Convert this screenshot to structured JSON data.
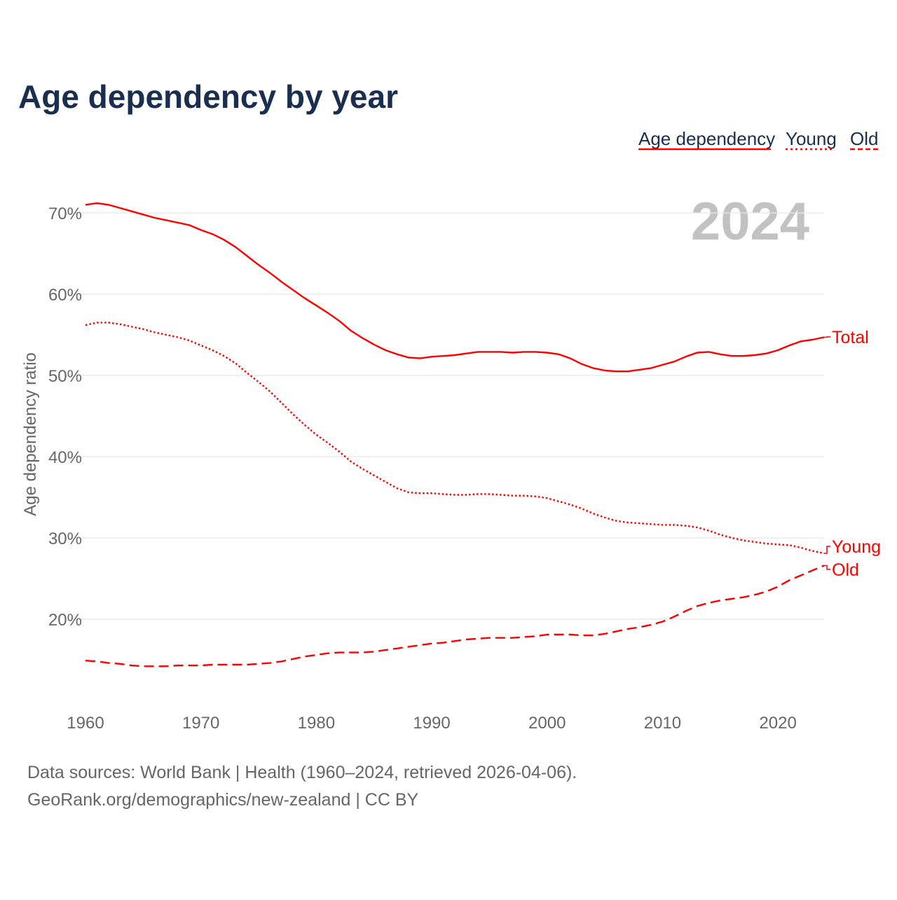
{
  "chart_data": {
    "type": "line",
    "title": "Age dependency by year",
    "xlabel": "",
    "ylabel": "Age dependency ratio",
    "watermark_year": "2024",
    "xlim": [
      1960,
      2024
    ],
    "ylim": [
      10,
      72
    ],
    "x_ticks": [
      1960,
      1970,
      1980,
      1990,
      2000,
      2010,
      2020
    ],
    "y_ticks": [
      20,
      30,
      40,
      50,
      60,
      70
    ],
    "y_tick_labels": [
      "20%",
      "30%",
      "40%",
      "50%",
      "60%",
      "70%"
    ],
    "grid": true,
    "legend_position": "top-right",
    "legend": [
      {
        "label": "Age dependency",
        "style": "solid"
      },
      {
        "label": "Young",
        "style": "dotted"
      },
      {
        "label": "Old",
        "style": "dashed"
      }
    ],
    "color": "#ff0000",
    "x_start": 1960,
    "series": [
      {
        "name": "Total",
        "end_label": "Total",
        "style": "solid",
        "values": [
          71.0,
          71.2,
          71.0,
          70.6,
          70.2,
          69.8,
          69.4,
          69.1,
          68.8,
          68.5,
          67.9,
          67.4,
          66.7,
          65.8,
          64.7,
          63.6,
          62.6,
          61.5,
          60.5,
          59.5,
          58.6,
          57.7,
          56.7,
          55.5,
          54.6,
          53.8,
          53.1,
          52.6,
          52.2,
          52.1,
          52.3,
          52.4,
          52.5,
          52.7,
          52.9,
          52.9,
          52.9,
          52.8,
          52.9,
          52.9,
          52.8,
          52.6,
          52.1,
          51.4,
          50.9,
          50.6,
          50.5,
          50.5,
          50.7,
          50.9,
          51.3,
          51.7,
          52.3,
          52.8,
          52.9,
          52.6,
          52.4,
          52.4,
          52.5,
          52.7,
          53.1,
          53.7,
          54.2,
          54.4,
          54.7
        ]
      },
      {
        "name": "Young",
        "end_label": "Young",
        "style": "dotted",
        "values": [
          56.2,
          56.5,
          56.5,
          56.3,
          56.0,
          55.7,
          55.3,
          55.0,
          54.7,
          54.3,
          53.7,
          53.1,
          52.4,
          51.5,
          50.3,
          49.2,
          48.0,
          46.6,
          45.2,
          43.9,
          42.7,
          41.7,
          40.6,
          39.4,
          38.5,
          37.7,
          36.9,
          36.1,
          35.6,
          35.5,
          35.5,
          35.4,
          35.3,
          35.3,
          35.4,
          35.4,
          35.3,
          35.2,
          35.2,
          35.1,
          34.9,
          34.5,
          34.1,
          33.6,
          33.0,
          32.5,
          32.1,
          31.9,
          31.8,
          31.7,
          31.6,
          31.6,
          31.5,
          31.3,
          30.9,
          30.4,
          30.0,
          29.7,
          29.5,
          29.3,
          29.2,
          29.1,
          28.8,
          28.4,
          28.1
        ]
      },
      {
        "name": "Old",
        "end_label": "Old",
        "style": "dashed",
        "values": [
          14.9,
          14.8,
          14.6,
          14.5,
          14.3,
          14.2,
          14.2,
          14.2,
          14.3,
          14.3,
          14.3,
          14.4,
          14.4,
          14.4,
          14.4,
          14.5,
          14.6,
          14.8,
          15.1,
          15.4,
          15.6,
          15.8,
          15.9,
          15.9,
          15.9,
          16.0,
          16.2,
          16.4,
          16.6,
          16.8,
          17.0,
          17.1,
          17.3,
          17.5,
          17.6,
          17.7,
          17.7,
          17.7,
          17.8,
          17.9,
          18.1,
          18.1,
          18.1,
          18.0,
          18.0,
          18.2,
          18.5,
          18.8,
          19.0,
          19.3,
          19.7,
          20.3,
          21.0,
          21.6,
          22.0,
          22.3,
          22.5,
          22.7,
          23.0,
          23.4,
          24.0,
          24.8,
          25.4,
          26.0,
          26.6
        ]
      }
    ]
  },
  "footer": {
    "line1": "Data sources: World Bank | Health (1960–2024, retrieved 2026-04-06).",
    "line2": "GeoRank.org/demographics/new-zealand | CC BY"
  }
}
